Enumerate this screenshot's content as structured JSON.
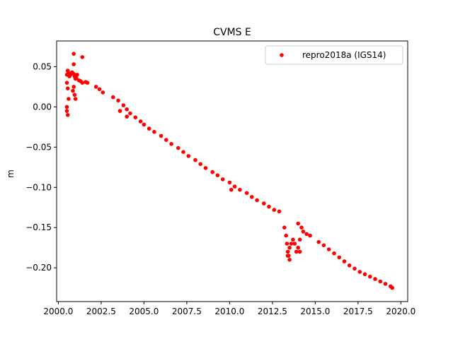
{
  "chart_data": {
    "type": "scatter",
    "title": "CVMS E",
    "xlabel": "",
    "ylabel": "m",
    "xlim": [
      1999.9,
      2020.4
    ],
    "ylim": [
      -0.242,
      0.082
    ],
    "x_ticks": [
      2000.0,
      2002.5,
      2005.0,
      2007.5,
      2010.0,
      2012.5,
      2015.0,
      2017.5,
      2020.0
    ],
    "x_tick_labels": [
      "2000.0",
      "2002.5",
      "2005.0",
      "2007.5",
      "2010.0",
      "2012.5",
      "2015.0",
      "2017.5",
      "2020.0"
    ],
    "y_ticks": [
      0.05,
      0.0,
      -0.05,
      -0.1,
      -0.15,
      -0.2
    ],
    "y_tick_labels": [
      "0.05",
      "0.00",
      "−0.05",
      "−0.10",
      "−0.15",
      "−0.20"
    ],
    "grid": false,
    "legend_position": "top-right",
    "series": [
      {
        "name": "repro2018a (IGS14)",
        "color": "#ff0000",
        "marker": "circle",
        "x": [
          2000.5,
          2000.5,
          2000.55,
          2000.6,
          2000.65,
          2000.7,
          2000.8,
          2000.9,
          2000.95,
          2001.0,
          2001.05,
          2001.1,
          2001.2,
          2001.3,
          2001.4,
          2001.6,
          2001.7,
          2000.5,
          2000.55,
          2000.6,
          2000.85,
          2000.9,
          2000.95,
          2001.0,
          2000.9,
          2001.4,
          2000.9,
          2000.55,
          2000.5,
          2002.2,
          2002.4,
          2002.6,
          2003.2,
          2003.5,
          2003.8,
          2004.0,
          2004.2,
          2004.5,
          2004.8,
          2005.0,
          2005.3,
          2005.6,
          2006.0,
          2006.3,
          2006.6,
          2007.0,
          2007.3,
          2007.6,
          2008.0,
          2008.3,
          2008.6,
          2009.0,
          2009.3,
          2009.6,
          2010.0,
          2010.3,
          2010.6,
          2011.0,
          2011.3,
          2011.6,
          2012.0,
          2012.3,
          2012.6,
          2012.9,
          2013.2,
          2013.3,
          2013.35,
          2013.4,
          2013.45,
          2013.5,
          2013.6,
          2013.7,
          2013.8,
          2013.9,
          2014.0,
          2014.1,
          2014.2,
          2014.3,
          2014.5,
          2014.7,
          2013.4,
          2013.5,
          2014.0,
          2014.1,
          2015.2,
          2015.5,
          2015.8,
          2016.1,
          2016.4,
          2016.7,
          2017.0,
          2017.3,
          2017.6,
          2017.9,
          2018.2,
          2018.5,
          2018.8,
          2019.1,
          2019.4,
          2019.5,
          2003.6,
          2004.0,
          2010.1
        ],
        "y": [
          0.03,
          0.04,
          0.045,
          0.042,
          0.038,
          0.04,
          0.043,
          0.041,
          0.038,
          0.035,
          0.036,
          0.04,
          0.033,
          0.032,
          0.03,
          0.031,
          0.03,
          -0.005,
          -0.01,
          0.01,
          0.02,
          0.025,
          0.015,
          0.01,
          0.066,
          0.062,
          0.053,
          0.023,
          0.0,
          0.025,
          0.022,
          0.018,
          0.012,
          0.008,
          0.002,
          -0.003,
          -0.008,
          -0.013,
          -0.018,
          -0.022,
          -0.027,
          -0.031,
          -0.036,
          -0.041,
          -0.046,
          -0.051,
          -0.056,
          -0.061,
          -0.066,
          -0.071,
          -0.076,
          -0.081,
          -0.085,
          -0.09,
          -0.094,
          -0.099,
          -0.103,
          -0.107,
          -0.112,
          -0.116,
          -0.12,
          -0.124,
          -0.128,
          -0.13,
          -0.15,
          -0.16,
          -0.17,
          -0.18,
          -0.185,
          -0.175,
          -0.17,
          -0.165,
          -0.17,
          -0.18,
          -0.175,
          -0.165,
          -0.15,
          -0.155,
          -0.158,
          -0.16,
          -0.185,
          -0.19,
          -0.145,
          -0.18,
          -0.168,
          -0.172,
          -0.177,
          -0.182,
          -0.187,
          -0.192,
          -0.197,
          -0.201,
          -0.205,
          -0.208,
          -0.211,
          -0.214,
          -0.217,
          -0.22,
          -0.223,
          -0.225,
          -0.005,
          -0.012,
          -0.103
        ]
      }
    ]
  }
}
